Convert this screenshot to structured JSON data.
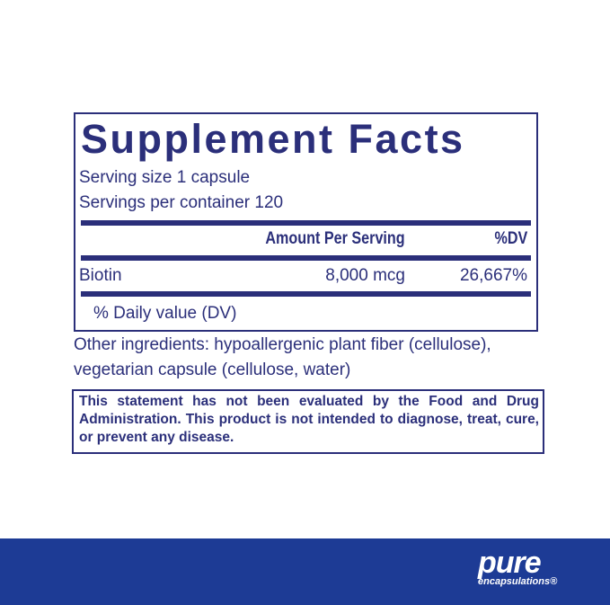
{
  "facts": {
    "title": "Supplement Facts",
    "serving_size": "Serving size  1 capsule",
    "servings_per_container": "Servings per container  120",
    "header_amount": "Amount Per Serving",
    "header_dv": "%DV",
    "rows": [
      {
        "name": "Biotin",
        "amount": "8,000 mcg",
        "dv": "26,667%"
      }
    ],
    "footnote": "% Daily value (DV)"
  },
  "other_ingredients": [
    "Other ingredients: hypoallergenic plant fiber (cellulose),",
    "vegetarian capsule (cellulose, water)"
  ],
  "disclaimer": "This statement has not been evaluated by the Food and Drug Administration. This product is not intended to diagnose, treat, cure, or prevent any disease.",
  "brand": {
    "line1": "pure",
    "line2": "encapsulations®",
    "color": "#1d3b95"
  }
}
